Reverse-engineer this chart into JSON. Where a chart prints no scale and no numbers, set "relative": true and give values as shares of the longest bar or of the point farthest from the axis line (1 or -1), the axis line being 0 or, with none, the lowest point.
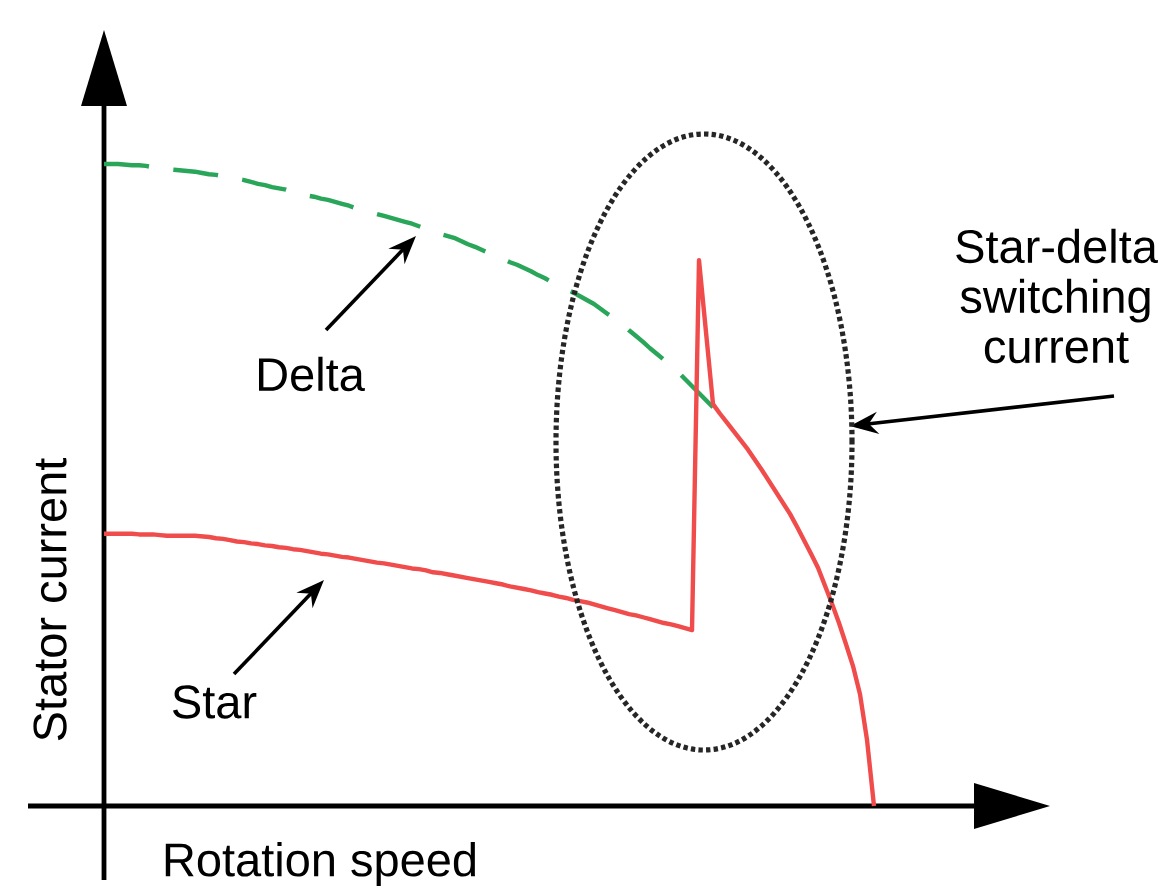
{
  "chart_data": {
    "type": "line",
    "relative": true,
    "tick_labels": false,
    "marker": "none",
    "xlabel": "Rotation speed",
    "ylabel": "Stator current",
    "annotations": [
      "Star-delta switching current"
    ],
    "categories": [
      null,
      null,
      null,
      null,
      null,
      null,
      null,
      null,
      null,
      null,
      null,
      null,
      null,
      null,
      null,
      null,
      null,
      null,
      null,
      null,
      null,
      null,
      null,
      null,
      null,
      null,
      null,
      null,
      null,
      null,
      null,
      null,
      null,
      null,
      null,
      null,
      null,
      null,
      null,
      null,
      null,
      null,
      null,
      null,
      null,
      null,
      null,
      null,
      null,
      null,
      null,
      null,
      null,
      null,
      null,
      null,
      null,
      null,
      null,
      null,
      null,
      null,
      null,
      null,
      null,
      null,
      null,
      null,
      null,
      null,
      null,
      null,
      null,
      null,
      null,
      null,
      null,
      null,
      null,
      null,
      null,
      null,
      null,
      null,
      null,
      null,
      null,
      null,
      null,
      null,
      null,
      null,
      null,
      null,
      null,
      null,
      null,
      null,
      null,
      null,
      null,
      null,
      null,
      null,
      null,
      null,
      null,
      null,
      null,
      null,
      null
    ],
    "series": [
      {
        "name": "Delta",
        "color": "#2aa65a",
        "line_style": "dashed",
        "values": [
          1.0,
          1.0,
          1.0,
          0.999,
          0.998,
          0.998,
          0.997,
          0.995,
          0.994,
          0.992,
          0.991,
          0.99,
          0.989,
          0.988,
          0.986,
          0.984,
          0.983,
          0.981,
          0.978,
          0.977,
          0.975,
          0.972,
          0.969,
          0.967,
          0.964,
          0.962,
          0.96,
          0.956,
          0.953,
          0.951,
          0.949,
          0.946,
          0.944,
          0.941,
          0.938,
          0.935,
          0.931,
          0.928,
          0.925,
          0.922,
          0.919,
          0.916,
          0.913,
          0.91,
          0.907,
          0.903,
          0.899,
          0.895,
          0.891,
          0.888,
          0.885,
          0.88,
          0.875,
          0.871,
          0.866,
          0.861,
          0.857,
          0.852,
          0.847,
          0.843,
          0.838,
          0.833,
          0.827,
          0.822,
          0.816,
          0.811,
          0.805,
          0.8,
          0.794,
          0.788,
          0.782,
          0.774,
          0.766,
          0.759,
          0.751,
          0.741,
          0.732,
          0.723,
          0.713,
          0.704,
          0.695,
          0.685,
          0.676,
          0.665,
          0.654,
          0.643,
          0.632,
          0.621,
          null,
          null,
          null,
          null,
          null,
          null,
          null,
          null,
          null,
          null,
          null,
          null,
          null,
          null,
          null,
          null,
          null,
          null,
          null,
          null,
          null,
          null,
          null
        ]
      },
      {
        "name": "Star",
        "color": "#f04c4c",
        "line_style": "solid",
        "values": [
          0.424,
          0.424,
          0.424,
          0.424,
          0.424,
          0.423,
          0.423,
          0.423,
          0.422,
          0.421,
          0.421,
          0.421,
          0.421,
          0.421,
          0.42,
          0.419,
          0.417,
          0.416,
          0.414,
          0.412,
          0.411,
          0.409,
          0.408,
          0.406,
          0.405,
          0.403,
          0.402,
          0.4,
          0.399,
          0.397,
          0.395,
          0.393,
          0.392,
          0.39,
          0.388,
          0.387,
          0.385,
          0.383,
          0.381,
          0.379,
          0.378,
          0.376,
          0.374,
          0.372,
          0.37,
          0.369,
          0.367,
          0.364,
          0.363,
          0.361,
          0.359,
          0.357,
          0.355,
          0.353,
          0.351,
          0.349,
          0.347,
          0.345,
          0.342,
          0.34,
          0.338,
          0.336,
          0.333,
          0.331,
          0.329,
          0.326,
          0.324,
          0.321,
          0.319,
          0.317,
          0.314,
          0.311,
          0.308,
          0.305,
          0.302,
          0.299,
          0.297,
          0.294,
          0.291,
          0.288,
          0.285,
          0.283,
          0.28,
          0.277,
          0.274,
          0.85,
          0.738,
          0.626,
          0.611,
          0.597,
          0.583,
          0.569,
          0.555,
          0.539,
          0.523,
          0.506,
          0.489,
          0.472,
          0.455,
          0.435,
          0.414,
          0.393,
          0.371,
          0.343,
          0.315,
          0.285,
          0.252,
          0.218,
          0.174,
          0.103,
          0
        ]
      }
    ]
  }
}
